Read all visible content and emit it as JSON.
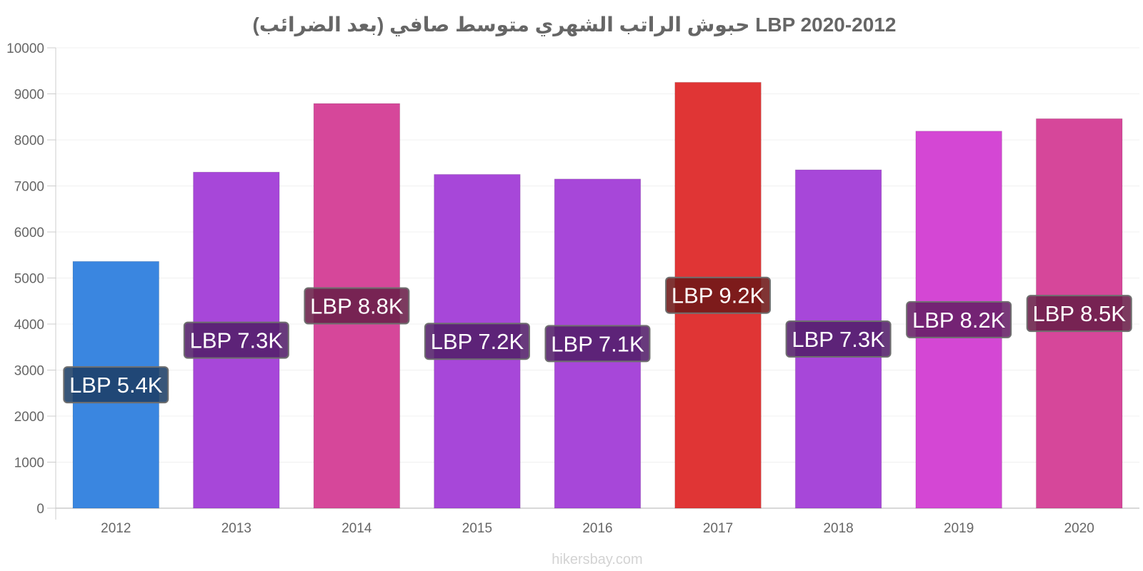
{
  "chart_data": {
    "type": "bar",
    "title": "حبوش الراتب الشهري متوسط صافي (بعد الضرائب) LBP 2020-2012",
    "xlabel": "",
    "ylabel": "",
    "ylim": [
      0,
      10000
    ],
    "yticks": [
      0,
      1000,
      2000,
      3000,
      4000,
      5000,
      6000,
      7000,
      8000,
      9000,
      10000
    ],
    "categories": [
      "2012",
      "2013",
      "2014",
      "2015",
      "2016",
      "2017",
      "2018",
      "2019",
      "2020"
    ],
    "values": [
      5360,
      7300,
      8790,
      7250,
      7150,
      9250,
      7350,
      8190,
      8460
    ],
    "labels": [
      "LBP 5.4K",
      "LBP 7.3K",
      "LBP 8.8K",
      "LBP 7.2K",
      "LBP 7.1K",
      "LBP 9.2K",
      "LBP 7.3K",
      "LBP 8.2K",
      "LBP 8.5K"
    ],
    "colors": [
      "#3a86e0",
      "#a747d9",
      "#d6479a",
      "#a747d9",
      "#a747d9",
      "#e03535",
      "#a747d9",
      "#d447d4",
      "#d6479a"
    ],
    "label_bg_colors": [
      "#1c3f66",
      "#531f6a",
      "#6a1f49",
      "#531f6a",
      "#531f6a",
      "#6e1818",
      "#531f6a",
      "#671f66",
      "#6a1f49"
    ],
    "grid": true,
    "legend": "none"
  },
  "footer": {
    "source": "hikersbay.com"
  }
}
